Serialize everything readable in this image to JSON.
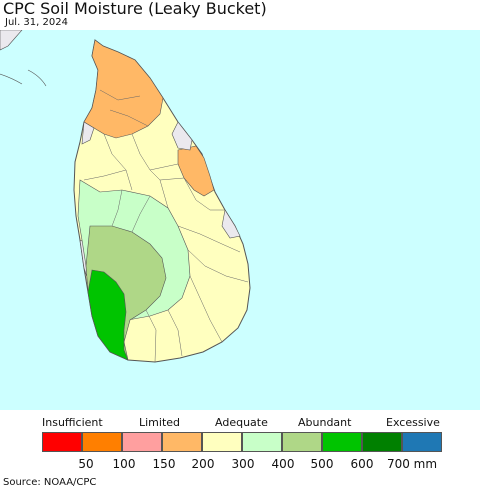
{
  "title": "CPC Soil Moisture (Leaky Bucket)",
  "date": "Jul. 31, 2024",
  "source": "Source: NOAA/CPC",
  "colors": {
    "ocean": "#ccffff",
    "no_data": "#ebe9ee",
    "border": "#555555"
  },
  "legend": {
    "categories": [
      "Insufficient",
      "Limited",
      "Adequate",
      "Abundant",
      "Excessive"
    ],
    "colors": [
      "#ff0000",
      "#ff7f00",
      "#ff9f9f",
      "#ffb866",
      "#ffffbf",
      "#c8ffc8",
      "#afd787",
      "#00c400",
      "#008000",
      "#1f78b4"
    ],
    "ticks": [
      "50",
      "100",
      "150",
      "200",
      "300",
      "400",
      "500",
      "600",
      "700 mm"
    ]
  },
  "map": {
    "region": "Sri Lanka",
    "dominant_class": "300"
  }
}
